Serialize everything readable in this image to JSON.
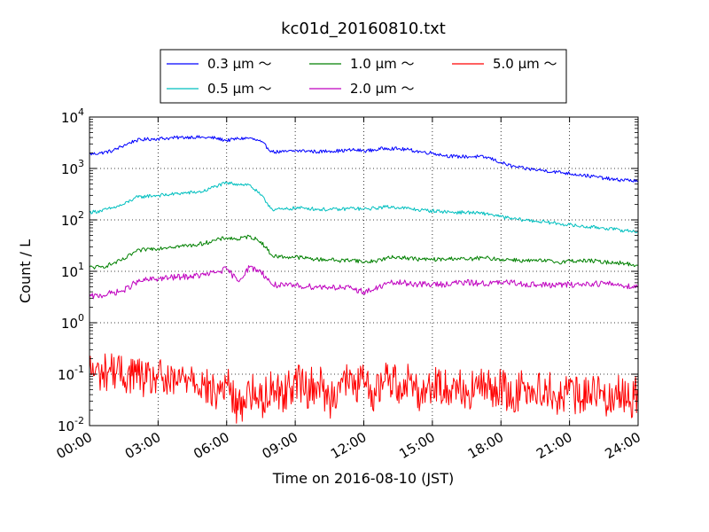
{
  "chart_data": {
    "type": "line",
    "title": "kc01d_20160810.txt",
    "xlabel": "Time on 2016-08-10 (JST)",
    "ylabel": "Count / L",
    "xlim": [
      0,
      24
    ],
    "ylim": [
      0.01,
      10000
    ],
    "yscale": "log",
    "grid": true,
    "legend_position": "top-outside",
    "legend_columns": 3,
    "x_ticks": [
      {
        "value": 0,
        "label": "00:00"
      },
      {
        "value": 3,
        "label": "03:00"
      },
      {
        "value": 6,
        "label": "06:00"
      },
      {
        "value": 9,
        "label": "09:00"
      },
      {
        "value": 12,
        "label": "12:00"
      },
      {
        "value": 15,
        "label": "15:00"
      },
      {
        "value": 18,
        "label": "18:00"
      },
      {
        "value": 21,
        "label": "21:00"
      },
      {
        "value": 24,
        "label": "24:00"
      }
    ],
    "y_ticks": [
      {
        "value": 0.01,
        "base": "10",
        "exp": "-2"
      },
      {
        "value": 0.1,
        "base": "10",
        "exp": "-1"
      },
      {
        "value": 1,
        "base": "10",
        "exp": "0"
      },
      {
        "value": 10,
        "base": "10",
        "exp": "1"
      },
      {
        "value": 100,
        "base": "10",
        "exp": "2"
      },
      {
        "value": 1000,
        "base": "10",
        "exp": "3"
      },
      {
        "value": 10000,
        "base": "10",
        "exp": "4"
      }
    ],
    "x_unit": "hours",
    "series": [
      {
        "name": "0.3 μm ～",
        "color": "#0000ff",
        "x": [
          0,
          0.5,
          1,
          1.5,
          2,
          2.5,
          3,
          3.5,
          4,
          4.5,
          5,
          5.5,
          6,
          6.5,
          7,
          7.5,
          8,
          8.5,
          9,
          9.5,
          10,
          10.5,
          11,
          11.5,
          12,
          12.5,
          13,
          13.5,
          14,
          14.5,
          15,
          15.5,
          16,
          16.5,
          17,
          17.5,
          18,
          18.5,
          19,
          19.5,
          20,
          20.5,
          21,
          21.5,
          22,
          22.5,
          23,
          23.5,
          24
        ],
        "y": [
          1900,
          2000,
          2200,
          2800,
          3500,
          3700,
          3800,
          3900,
          4000,
          4100,
          4000,
          3900,
          3500,
          3800,
          3900,
          3300,
          2100,
          2100,
          2200,
          2200,
          2100,
          2200,
          2200,
          2300,
          2200,
          2300,
          2500,
          2400,
          2300,
          2100,
          2000,
          1800,
          1700,
          1700,
          1700,
          1600,
          1300,
          1100,
          1000,
          950,
          900,
          850,
          800,
          750,
          700,
          650,
          600,
          600,
          560
        ]
      },
      {
        "name": "0.5 μm ～",
        "color": "#00bfbf",
        "x": [
          0,
          0.5,
          1,
          1.5,
          2,
          2.5,
          3,
          3.5,
          4,
          4.5,
          5,
          5.5,
          6,
          6.5,
          7,
          7.5,
          8,
          8.5,
          9,
          9.5,
          10,
          10.5,
          11,
          11.5,
          12,
          12.5,
          13,
          13.5,
          14,
          14.5,
          15,
          15.5,
          16,
          16.5,
          17,
          17.5,
          18,
          18.5,
          19,
          19.5,
          20,
          20.5,
          21,
          21.5,
          22,
          22.5,
          23,
          23.5,
          24
        ],
        "y": [
          140,
          150,
          170,
          200,
          270,
          290,
          300,
          310,
          330,
          340,
          360,
          450,
          520,
          500,
          480,
          300,
          160,
          160,
          170,
          170,
          160,
          160,
          160,
          170,
          160,
          170,
          180,
          175,
          165,
          155,
          150,
          145,
          140,
          140,
          135,
          130,
          115,
          105,
          100,
          95,
          90,
          85,
          80,
          75,
          72,
          70,
          65,
          62,
          58
        ]
      },
      {
        "name": "1.0 μm ～",
        "color": "#008000",
        "x": [
          0,
          0.5,
          1,
          1.5,
          2,
          2.5,
          3,
          3.5,
          4,
          4.5,
          5,
          5.5,
          6,
          6.5,
          7,
          7.5,
          8,
          8.5,
          9,
          9.5,
          10,
          10.5,
          11,
          11.5,
          12,
          12.5,
          13,
          13.5,
          14,
          14.5,
          15,
          15.5,
          16,
          16.5,
          17,
          17.5,
          18,
          18.5,
          19,
          19.5,
          20,
          20.5,
          21,
          21.5,
          22,
          22.5,
          23,
          23.5,
          24
        ],
        "y": [
          12,
          12,
          14,
          17,
          24,
          27,
          28,
          30,
          31,
          32,
          35,
          40,
          45,
          42,
          48,
          38,
          20,
          19,
          19,
          18,
          17,
          17,
          16,
          17,
          15,
          16,
          18,
          19,
          18,
          17,
          17,
          17,
          18,
          17,
          18,
          18,
          17,
          17,
          16,
          16,
          16,
          15,
          16,
          16,
          16,
          15,
          15,
          14,
          13
        ]
      },
      {
        "name": "2.0 μm ～",
        "color": "#bf00bf",
        "x": [
          0,
          0.5,
          1,
          1.5,
          2,
          2.5,
          3,
          3.5,
          4,
          4.5,
          5,
          5.5,
          6,
          6.5,
          7,
          7.5,
          8,
          8.5,
          9,
          9.5,
          10,
          10.5,
          11,
          11.5,
          12,
          12.5,
          13,
          13.5,
          14,
          14.5,
          15,
          15.5,
          16,
          16.5,
          17,
          17.5,
          18,
          18.5,
          19,
          19.5,
          20,
          20.5,
          21,
          21.5,
          22,
          22.5,
          23,
          23.5,
          24
        ],
        "y": [
          3.2,
          3.4,
          3.8,
          4.2,
          6.0,
          6.8,
          7.2,
          7.5,
          7.8,
          8.0,
          8.5,
          9.5,
          11,
          6.5,
          12,
          10,
          5.5,
          5.2,
          5.3,
          5.1,
          5.0,
          5.0,
          4.8,
          4.6,
          4.0,
          4.5,
          5.8,
          6.0,
          5.8,
          5.6,
          5.5,
          5.6,
          6.0,
          6.0,
          5.9,
          5.8,
          6.0,
          6.0,
          5.7,
          5.5,
          5.4,
          5.4,
          5.5,
          5.6,
          5.8,
          5.8,
          5.6,
          5.2,
          5.0
        ]
      },
      {
        "name": "5.0 μm ～",
        "color": "#ff0000",
        "x": [
          0,
          0.5,
          1,
          1.5,
          2,
          2.5,
          3,
          3.5,
          4,
          4.5,
          5,
          5.5,
          6,
          6.5,
          7,
          7.5,
          8,
          8.5,
          9,
          9.5,
          10,
          10.5,
          11,
          11.5,
          12,
          12.5,
          13,
          13.5,
          14,
          14.5,
          15,
          15.5,
          16,
          16.5,
          17,
          17.5,
          18,
          18.5,
          19,
          19.5,
          20,
          20.5,
          21,
          21.5,
          22,
          22.5,
          23,
          23.5,
          24
        ],
        "y": [
          0.12,
          0.1,
          0.13,
          0.09,
          0.11,
          0.07,
          0.09,
          0.06,
          0.08,
          0.1,
          0.06,
          0.04,
          0.07,
          0.02,
          0.05,
          0.03,
          0.06,
          0.04,
          0.08,
          0.05,
          0.07,
          0.03,
          0.08,
          0.06,
          0.07,
          0.04,
          0.1,
          0.06,
          0.08,
          0.04,
          0.07,
          0.05,
          0.07,
          0.04,
          0.06,
          0.05,
          0.06,
          0.03,
          0.07,
          0.04,
          0.06,
          0.03,
          0.05,
          0.03,
          0.06,
          0.03,
          0.05,
          0.03,
          0.04
        ]
      }
    ]
  }
}
